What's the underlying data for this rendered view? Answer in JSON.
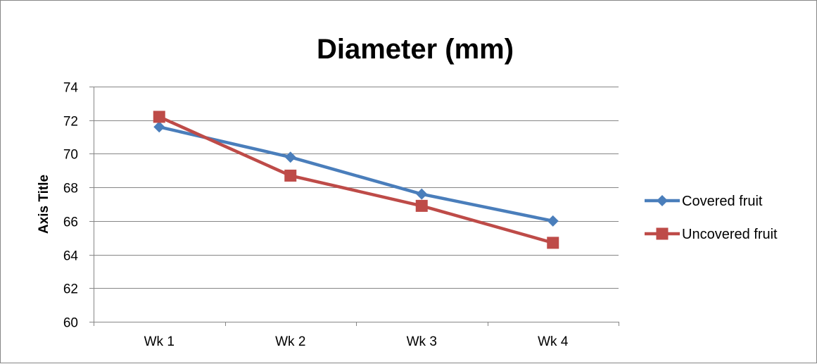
{
  "chart_data": {
    "type": "line",
    "title": "Diameter (mm)",
    "xlabel": "",
    "ylabel": "Axis Title",
    "categories": [
      "Wk 1",
      "Wk 2",
      "Wk 3",
      "Wk 4"
    ],
    "ylim": [
      60,
      74
    ],
    "yticks": [
      60,
      62,
      64,
      66,
      68,
      70,
      72,
      74
    ],
    "grid": true,
    "legend_position": "right",
    "series": [
      {
        "name": "Covered fruit",
        "values": [
          71.6,
          69.8,
          67.6,
          66.0
        ],
        "color": "#4A7EBB",
        "marker": "diamond"
      },
      {
        "name": "Uncovered fruit",
        "values": [
          72.2,
          68.7,
          66.9,
          64.7
        ],
        "color": "#BE4B48",
        "marker": "square"
      }
    ]
  }
}
